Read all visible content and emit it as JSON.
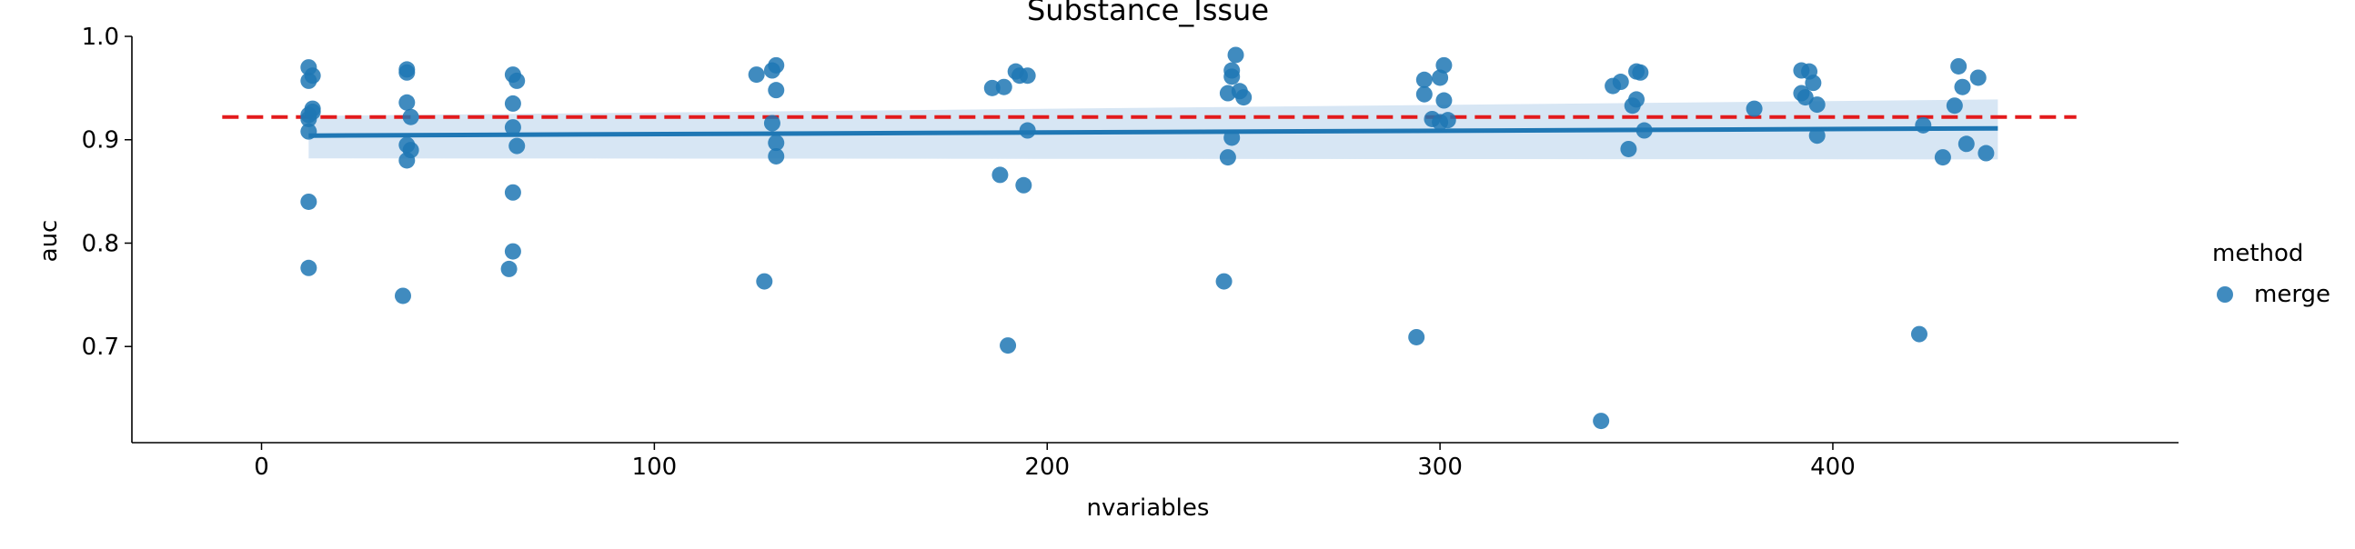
{
  "chart_data": {
    "type": "scatter",
    "title": "Substance_Issue",
    "xlabel": "nvariables",
    "ylabel": "auc",
    "xlim": [
      -33,
      488
    ],
    "ylim": [
      0.607,
      1.0
    ],
    "xticks": [
      0,
      100,
      200,
      300,
      400
    ],
    "yticks": [
      0.7,
      0.8,
      0.9,
      1.0
    ],
    "xtick_labels": [
      "0",
      "100",
      "200",
      "300",
      "400"
    ],
    "ytick_labels": [
      "0.7",
      "0.8",
      "0.9",
      "1.0"
    ],
    "grid": false,
    "legend": {
      "title": "method",
      "placement": "right",
      "entries": [
        "merge"
      ]
    },
    "colors": {
      "points": "#1f77b4",
      "reference": "#e31a1c",
      "band": "#c6dbef"
    },
    "reference_line": {
      "y": 0.922,
      "style": "dashed"
    },
    "regression": {
      "x": [
        12,
        442
      ],
      "y": [
        0.904,
        0.911
      ]
    },
    "confidence_band": {
      "x": [
        12,
        442
      ],
      "upper": [
        0.923,
        0.939
      ],
      "lower": [
        0.882,
        0.881
      ]
    },
    "series": [
      {
        "name": "merge",
        "x": [
          12,
          13,
          12,
          13,
          12,
          12,
          12,
          12,
          12,
          13,
          37,
          37,
          37,
          38,
          37,
          37,
          38,
          36,
          64,
          65,
          64,
          64,
          65,
          64,
          63,
          64,
          126,
          130,
          131,
          131,
          130,
          131,
          131,
          128,
          186,
          192,
          193,
          195,
          189,
          188,
          194,
          195,
          190,
          248,
          247,
          247,
          246,
          249,
          250,
          247,
          246,
          245,
          301,
          296,
          300,
          298,
          296,
          300,
          301,
          302,
          294,
          344,
          346,
          350,
          351,
          349,
          352,
          348,
          350,
          341,
          392,
          394,
          393,
          395,
          392,
          396,
          396,
          380,
          432,
          437,
          433,
          431,
          428,
          434,
          439,
          423,
          422
        ],
        "y": [
          0.97,
          0.962,
          0.957,
          0.93,
          0.924,
          0.92,
          0.908,
          0.84,
          0.776,
          0.927,
          0.968,
          0.965,
          0.936,
          0.922,
          0.895,
          0.88,
          0.89,
          0.749,
          0.963,
          0.957,
          0.935,
          0.912,
          0.894,
          0.849,
          0.775,
          0.792,
          0.963,
          0.967,
          0.972,
          0.948,
          0.916,
          0.897,
          0.884,
          0.763,
          0.95,
          0.966,
          0.962,
          0.909,
          0.951,
          0.866,
          0.856,
          0.962,
          0.701,
          0.982,
          0.967,
          0.961,
          0.945,
          0.947,
          0.941,
          0.902,
          0.883,
          0.763,
          0.972,
          0.958,
          0.96,
          0.92,
          0.944,
          0.917,
          0.938,
          0.919,
          0.709,
          0.952,
          0.956,
          0.966,
          0.965,
          0.933,
          0.909,
          0.891,
          0.939,
          0.628,
          0.967,
          0.966,
          0.941,
          0.955,
          0.945,
          0.934,
          0.904,
          0.93,
          0.971,
          0.96,
          0.951,
          0.933,
          0.883,
          0.896,
          0.887,
          0.914,
          0.712
        ]
      }
    ]
  }
}
